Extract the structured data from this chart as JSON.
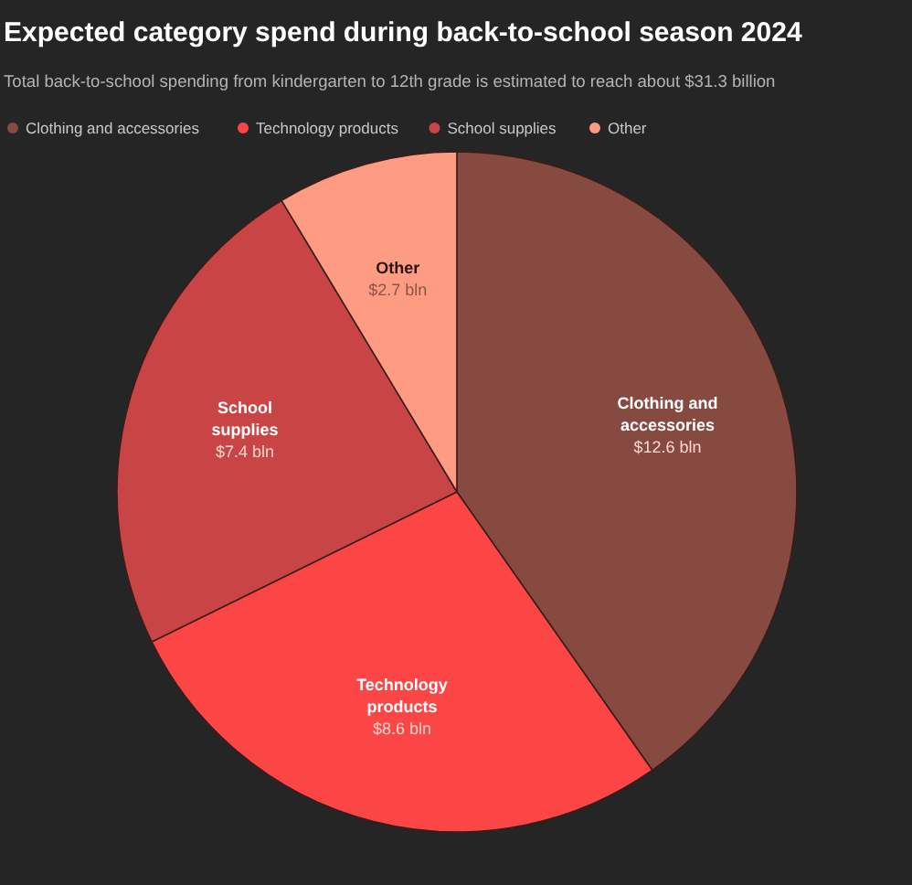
{
  "chart_data": {
    "type": "pie",
    "title": "Expected category spend during back-to-school season 2024",
    "subtitle": "Total back-to-school spending from kindergarten to 12th grade is estimated to reach about $31.3 billion",
    "categories": [
      "Clothing and accessories",
      "Technology products",
      "School supplies",
      "Other"
    ],
    "values": [
      12.6,
      8.6,
      7.4,
      2.7
    ],
    "value_labels": [
      "$12.6 bln",
      "$8.6 bln",
      "$7.4 bln",
      "$2.7 bln"
    ],
    "colors": [
      "#874a40",
      "#fc4646",
      "#c94444",
      "#fd9c82"
    ],
    "legend": "top"
  }
}
